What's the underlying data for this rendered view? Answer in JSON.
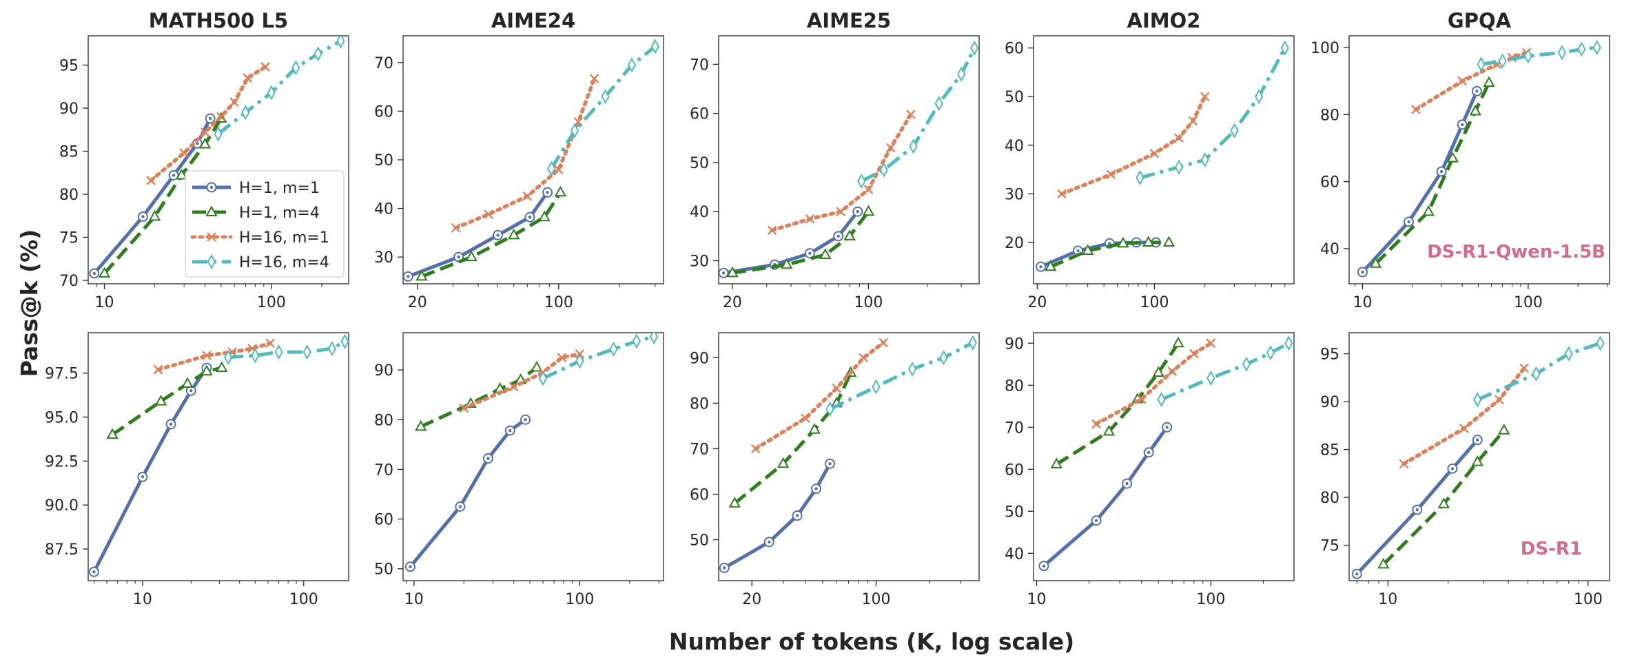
{
  "figure": {
    "xlabel": "Number of tokens (K, log scale)",
    "ylabel": "Pass@k (%)"
  },
  "series_styles": [
    {
      "name": "H=1, m=1",
      "color": "#5470ab",
      "dash": "solid",
      "marker": "circle"
    },
    {
      "name": "H=1, m=4",
      "color": "#2e7d1f",
      "dash": "dashed",
      "marker": "triangle"
    },
    {
      "name": "H=16, m=1",
      "color": "#d9825b",
      "dash": "dotted",
      "marker": "x"
    },
    {
      "name": "H=16, m=4",
      "color": "#52b9bd",
      "dash": "dashdot",
      "marker": "diamond"
    }
  ],
  "annotation_color": "#d36b8d",
  "chart_data": [
    {
      "type": "line",
      "row": 0,
      "col": 0,
      "title": "MATH500 L5",
      "xscale": "log",
      "xlim": [
        8,
        290
      ],
      "ylim": [
        69.6,
        98.4
      ],
      "xticks": [
        10,
        100
      ],
      "xtick_labels": [
        "10",
        "100"
      ],
      "yticks": [
        70,
        75,
        80,
        85,
        90,
        95
      ],
      "ytick_labels": [
        "70",
        "75",
        "80",
        "85",
        "90",
        "95"
      ],
      "legend": "center-left",
      "series": [
        {
          "name": "H=1, m=1",
          "x": [
            8.7,
            17,
            26,
            36,
            43
          ],
          "y": [
            70.8,
            77.4,
            82.2,
            85.9,
            88.8
          ]
        },
        {
          "name": "H=1, m=4",
          "x": [
            10,
            20,
            29,
            40,
            50
          ],
          "y": [
            70.8,
            77.4,
            82.2,
            85.8,
            88.8
          ]
        },
        {
          "name": "H=16, m=1",
          "x": [
            19,
            30,
            40,
            50,
            60,
            72,
            92
          ],
          "y": [
            81.6,
            84.8,
            87.2,
            89.0,
            90.7,
            93.5,
            94.8
          ]
        },
        {
          "name": "H=16, m=4",
          "x": [
            48,
            70,
            100,
            140,
            190,
            260
          ],
          "y": [
            87.0,
            89.5,
            91.8,
            94.7,
            96.3,
            97.8
          ]
        }
      ]
    },
    {
      "type": "line",
      "row": 0,
      "col": 1,
      "title": "AIME24",
      "xscale": "log",
      "xlim": [
        17,
        330
      ],
      "ylim": [
        24.5,
        75.5
      ],
      "xticks": [
        20,
        100
      ],
      "xtick_labels": [
        "20",
        "100"
      ],
      "yticks": [
        30,
        40,
        50,
        60,
        70
      ],
      "ytick_labels": [
        "30",
        "40",
        "50",
        "60",
        "70"
      ],
      "series": [
        {
          "name": "H=1, m=1",
          "x": [
            18,
            32,
            50,
            72,
            88
          ],
          "y": [
            26.0,
            30.0,
            34.5,
            38.2,
            43.3
          ]
        },
        {
          "name": "H=1, m=4",
          "x": [
            21,
            37,
            60,
            85,
            102
          ],
          "y": [
            26.0,
            30.0,
            34.5,
            38.2,
            43.3
          ]
        },
        {
          "name": "H=16, m=1",
          "x": [
            31,
            45,
            70,
            100,
            125,
            150
          ],
          "y": [
            36.0,
            38.8,
            42.5,
            48.0,
            57.8,
            66.7
          ]
        },
        {
          "name": "H=16, m=4",
          "x": [
            92,
            120,
            170,
            230,
            300
          ],
          "y": [
            48.2,
            56.0,
            63.0,
            69.5,
            73.3
          ]
        }
      ]
    },
    {
      "type": "line",
      "row": 0,
      "col": 2,
      "title": "AIME25",
      "xscale": "log",
      "xlim": [
        17,
        370
      ],
      "ylim": [
        25.3,
        75.8
      ],
      "xticks": [
        20,
        100
      ],
      "xtick_labels": [
        "20",
        "100"
      ],
      "yticks": [
        30,
        40,
        50,
        60,
        70
      ],
      "ytick_labels": [
        "30",
        "40",
        "50",
        "60",
        "70"
      ],
      "series": [
        {
          "name": "H=1, m=1",
          "x": [
            18,
            33,
            50,
            70,
            88
          ],
          "y": [
            27.5,
            29.2,
            31.5,
            35.0,
            40.0
          ]
        },
        {
          "name": "H=1, m=4",
          "x": [
            20,
            38,
            60,
            80,
            100
          ],
          "y": [
            27.5,
            29.2,
            31.2,
            35.0,
            40.0
          ]
        },
        {
          "name": "H=16, m=1",
          "x": [
            32,
            50,
            72,
            100,
            130,
            165
          ],
          "y": [
            36.2,
            38.5,
            40.0,
            44.5,
            53.0,
            59.8
          ]
        },
        {
          "name": "H=16, m=4",
          "x": [
            92,
            120,
            170,
            230,
            300,
            350
          ],
          "y": [
            46.2,
            48.5,
            53.3,
            62.0,
            68.0,
            73.3
          ]
        }
      ]
    },
    {
      "type": "line",
      "row": 0,
      "col": 3,
      "title": "AIMO2",
      "xscale": "log",
      "xlim": [
        19,
        680
      ],
      "ylim": [
        11.5,
        62.5
      ],
      "xticks": [
        20,
        100
      ],
      "xtick_labels": [
        "20",
        "100"
      ],
      "yticks": [
        20,
        30,
        40,
        50,
        60
      ],
      "ytick_labels": [
        "20",
        "30",
        "40",
        "50",
        "60"
      ],
      "series": [
        {
          "name": "H=1, m=1",
          "x": [
            21,
            35,
            54,
            78,
            102
          ],
          "y": [
            15.0,
            18.3,
            19.8,
            20.0,
            20.0
          ]
        },
        {
          "name": "H=1, m=4",
          "x": [
            24,
            40,
            65,
            92,
            122
          ],
          "y": [
            15.0,
            18.3,
            19.8,
            20.0,
            20.0
          ]
        },
        {
          "name": "H=16, m=1",
          "x": [
            28,
            55,
            100,
            140,
            170,
            200
          ],
          "y": [
            30.0,
            34.0,
            38.3,
            41.5,
            45.0,
            50.0
          ]
        },
        {
          "name": "H=16, m=4",
          "x": [
            82,
            140,
            200,
            300,
            420,
            600
          ],
          "y": [
            33.3,
            35.5,
            37.0,
            43.0,
            50.0,
            60.0
          ]
        }
      ]
    },
    {
      "type": "line",
      "row": 0,
      "col": 4,
      "title": "GPQA",
      "xscale": "log",
      "xlim": [
        8.3,
        310
      ],
      "ylim": [
        29.5,
        103.5
      ],
      "xticks": [
        10,
        100
      ],
      "xtick_labels": [
        "10",
        "100"
      ],
      "yticks": [
        40,
        60,
        80,
        100
      ],
      "ytick_labels": [
        "40",
        "60",
        "80",
        "100"
      ],
      "annotation": "DS-R1-Qwen-1.5B",
      "series": [
        {
          "name": "H=1, m=1",
          "x": [
            10,
            19,
            30,
            40,
            49
          ],
          "y": [
            33.0,
            48.0,
            63.0,
            77.0,
            87.0
          ]
        },
        {
          "name": "H=1, m=4",
          "x": [
            12,
            25,
            35,
            48,
            58
          ],
          "y": [
            35.5,
            51.0,
            67.0,
            81.0,
            89.5
          ]
        },
        {
          "name": "H=16, m=1",
          "x": [
            21,
            40,
            65,
            80,
            98
          ],
          "y": [
            81.5,
            90.0,
            95.0,
            97.0,
            98.5
          ]
        },
        {
          "name": "H=16, m=4",
          "x": [
            52,
            70,
            100,
            160,
            210,
            260
          ],
          "y": [
            95.0,
            96.0,
            97.5,
            98.5,
            99.5,
            100.0
          ]
        }
      ]
    },
    {
      "type": "line",
      "row": 1,
      "col": 0,
      "title": "",
      "xscale": "log",
      "xlim": [
        4.6,
        190
      ],
      "ylim": [
        85.7,
        99.8
      ],
      "xticks": [
        10,
        100
      ],
      "xtick_labels": [
        "10",
        "100"
      ],
      "yticks": [
        87.5,
        90.0,
        92.5,
        95.0,
        97.5
      ],
      "ytick_labels": [
        "87.5",
        "90.0",
        "92.5",
        "95.0",
        "97.5"
      ],
      "series": [
        {
          "name": "H=1, m=1",
          "x": [
            5,
            10,
            15,
            20,
            25
          ],
          "y": [
            86.2,
            91.6,
            94.6,
            96.5,
            97.8
          ]
        },
        {
          "name": "H=1, m=4",
          "x": [
            6.5,
            13,
            19,
            25,
            31
          ],
          "y": [
            94.0,
            95.9,
            96.9,
            97.6,
            97.8
          ]
        },
        {
          "name": "H=16, m=1",
          "x": [
            12.5,
            25,
            36,
            48,
            62
          ],
          "y": [
            97.7,
            98.5,
            98.7,
            98.9,
            99.2
          ]
        },
        {
          "name": "H=16, m=4",
          "x": [
            34,
            50,
            70,
            105,
            150,
            180
          ],
          "y": [
            98.4,
            98.5,
            98.7,
            98.7,
            98.9,
            99.3
          ]
        }
      ]
    },
    {
      "type": "line",
      "row": 1,
      "col": 1,
      "title": "",
      "xscale": "log",
      "xlim": [
        8.6,
        320
      ],
      "ylim": [
        47.6,
        97.5
      ],
      "xticks": [
        10,
        100
      ],
      "xtick_labels": [
        "10",
        "100"
      ],
      "yticks": [
        50,
        60,
        70,
        80,
        90
      ],
      "ytick_labels": [
        "50",
        "60",
        "70",
        "80",
        "90"
      ],
      "series": [
        {
          "name": "H=1, m=1",
          "x": [
            9.5,
            19,
            28,
            38,
            47
          ],
          "y": [
            50.4,
            62.5,
            72.2,
            77.8,
            80.0
          ]
        },
        {
          "name": "H=1, m=4",
          "x": [
            11,
            22,
            33,
            44,
            55
          ],
          "y": [
            78.6,
            83.2,
            86.2,
            88.0,
            90.5
          ]
        },
        {
          "name": "H=16, m=1",
          "x": [
            20,
            40,
            60,
            78,
            100
          ],
          "y": [
            82.3,
            86.6,
            89.5,
            92.5,
            93.2
          ]
        },
        {
          "name": "H=16, m=4",
          "x": [
            60,
            100,
            160,
            220,
            280
          ],
          "y": [
            88.3,
            91.8,
            94.2,
            95.8,
            96.7
          ]
        }
      ]
    },
    {
      "type": "line",
      "row": 1,
      "col": 2,
      "title": "",
      "xscale": "log",
      "xlim": [
        13,
        380
      ],
      "ylim": [
        41.0,
        95.5
      ],
      "xticks": [
        20,
        100
      ],
      "xtick_labels": [
        "20",
        "100"
      ],
      "yticks": [
        50,
        60,
        70,
        80,
        90
      ],
      "ytick_labels": [
        "50",
        "60",
        "70",
        "80",
        "90"
      ],
      "series": [
        {
          "name": "H=1, m=1",
          "x": [
            14,
            25,
            36,
            46,
            55
          ],
          "y": [
            43.8,
            49.5,
            55.3,
            61.2,
            66.7
          ]
        },
        {
          "name": "H=1, m=4",
          "x": [
            16,
            30,
            45,
            60,
            72
          ],
          "y": [
            58.0,
            66.7,
            74.2,
            80.0,
            86.7
          ]
        },
        {
          "name": "H=16, m=1",
          "x": [
            21,
            40,
            60,
            85,
            110
          ],
          "y": [
            70.0,
            76.7,
            83.3,
            90.0,
            93.3
          ]
        },
        {
          "name": "H=16, m=4",
          "x": [
            55,
            100,
            160,
            240,
            350
          ],
          "y": [
            78.7,
            83.6,
            87.5,
            90.0,
            93.3
          ]
        }
      ]
    },
    {
      "type": "line",
      "row": 1,
      "col": 3,
      "title": "",
      "xscale": "log",
      "xlim": [
        9.6,
        300
      ],
      "ylim": [
        33.5,
        92.5
      ],
      "xticks": [
        10,
        100
      ],
      "xtick_labels": [
        "10",
        "100"
      ],
      "yticks": [
        40,
        50,
        60,
        70,
        80,
        90
      ],
      "ytick_labels": [
        "40",
        "50",
        "60",
        "70",
        "80",
        "90"
      ],
      "series": [
        {
          "name": "H=1, m=1",
          "x": [
            11,
            22,
            33,
            44,
            56
          ],
          "y": [
            37.0,
            47.8,
            56.6,
            64.0,
            70.0
          ]
        },
        {
          "name": "H=1, m=4",
          "x": [
            13,
            26,
            38,
            50,
            65
          ],
          "y": [
            61.2,
            69.0,
            76.7,
            83.0,
            90.0
          ]
        },
        {
          "name": "H=16, m=1",
          "x": [
            22,
            40,
            60,
            80,
            100
          ],
          "y": [
            70.8,
            76.7,
            83.3,
            87.5,
            90.0
          ]
        },
        {
          "name": "H=16, m=4",
          "x": [
            52,
            100,
            160,
            220,
            280
          ],
          "y": [
            76.6,
            81.7,
            85.0,
            87.7,
            90.0
          ]
        }
      ]
    },
    {
      "type": "line",
      "row": 1,
      "col": 4,
      "title": "",
      "xscale": "log",
      "xlim": [
        6.4,
        128
      ],
      "ylim": [
        71.3,
        97.2
      ],
      "xticks": [
        10,
        100
      ],
      "xtick_labels": [
        "10",
        "100"
      ],
      "yticks": [
        75,
        80,
        85,
        90,
        95
      ],
      "ytick_labels": [
        "75",
        "80",
        "85",
        "90",
        "95"
      ],
      "annotation": "DS-R1",
      "series": [
        {
          "name": "H=1, m=1",
          "x": [
            7,
            14,
            21,
            28
          ],
          "y": [
            72.0,
            78.7,
            83.0,
            86.0
          ]
        },
        {
          "name": "H=1, m=4",
          "x": [
            9.5,
            19,
            28,
            38
          ],
          "y": [
            73.0,
            79.3,
            83.7,
            87.0
          ]
        },
        {
          "name": "H=16, m=1",
          "x": [
            12,
            24,
            36,
            48
          ],
          "y": [
            83.5,
            87.2,
            90.2,
            93.5
          ]
        },
        {
          "name": "H=16, m=4",
          "x": [
            28,
            55,
            80,
            115
          ],
          "y": [
            90.2,
            92.9,
            95.0,
            96.1
          ]
        }
      ]
    }
  ]
}
